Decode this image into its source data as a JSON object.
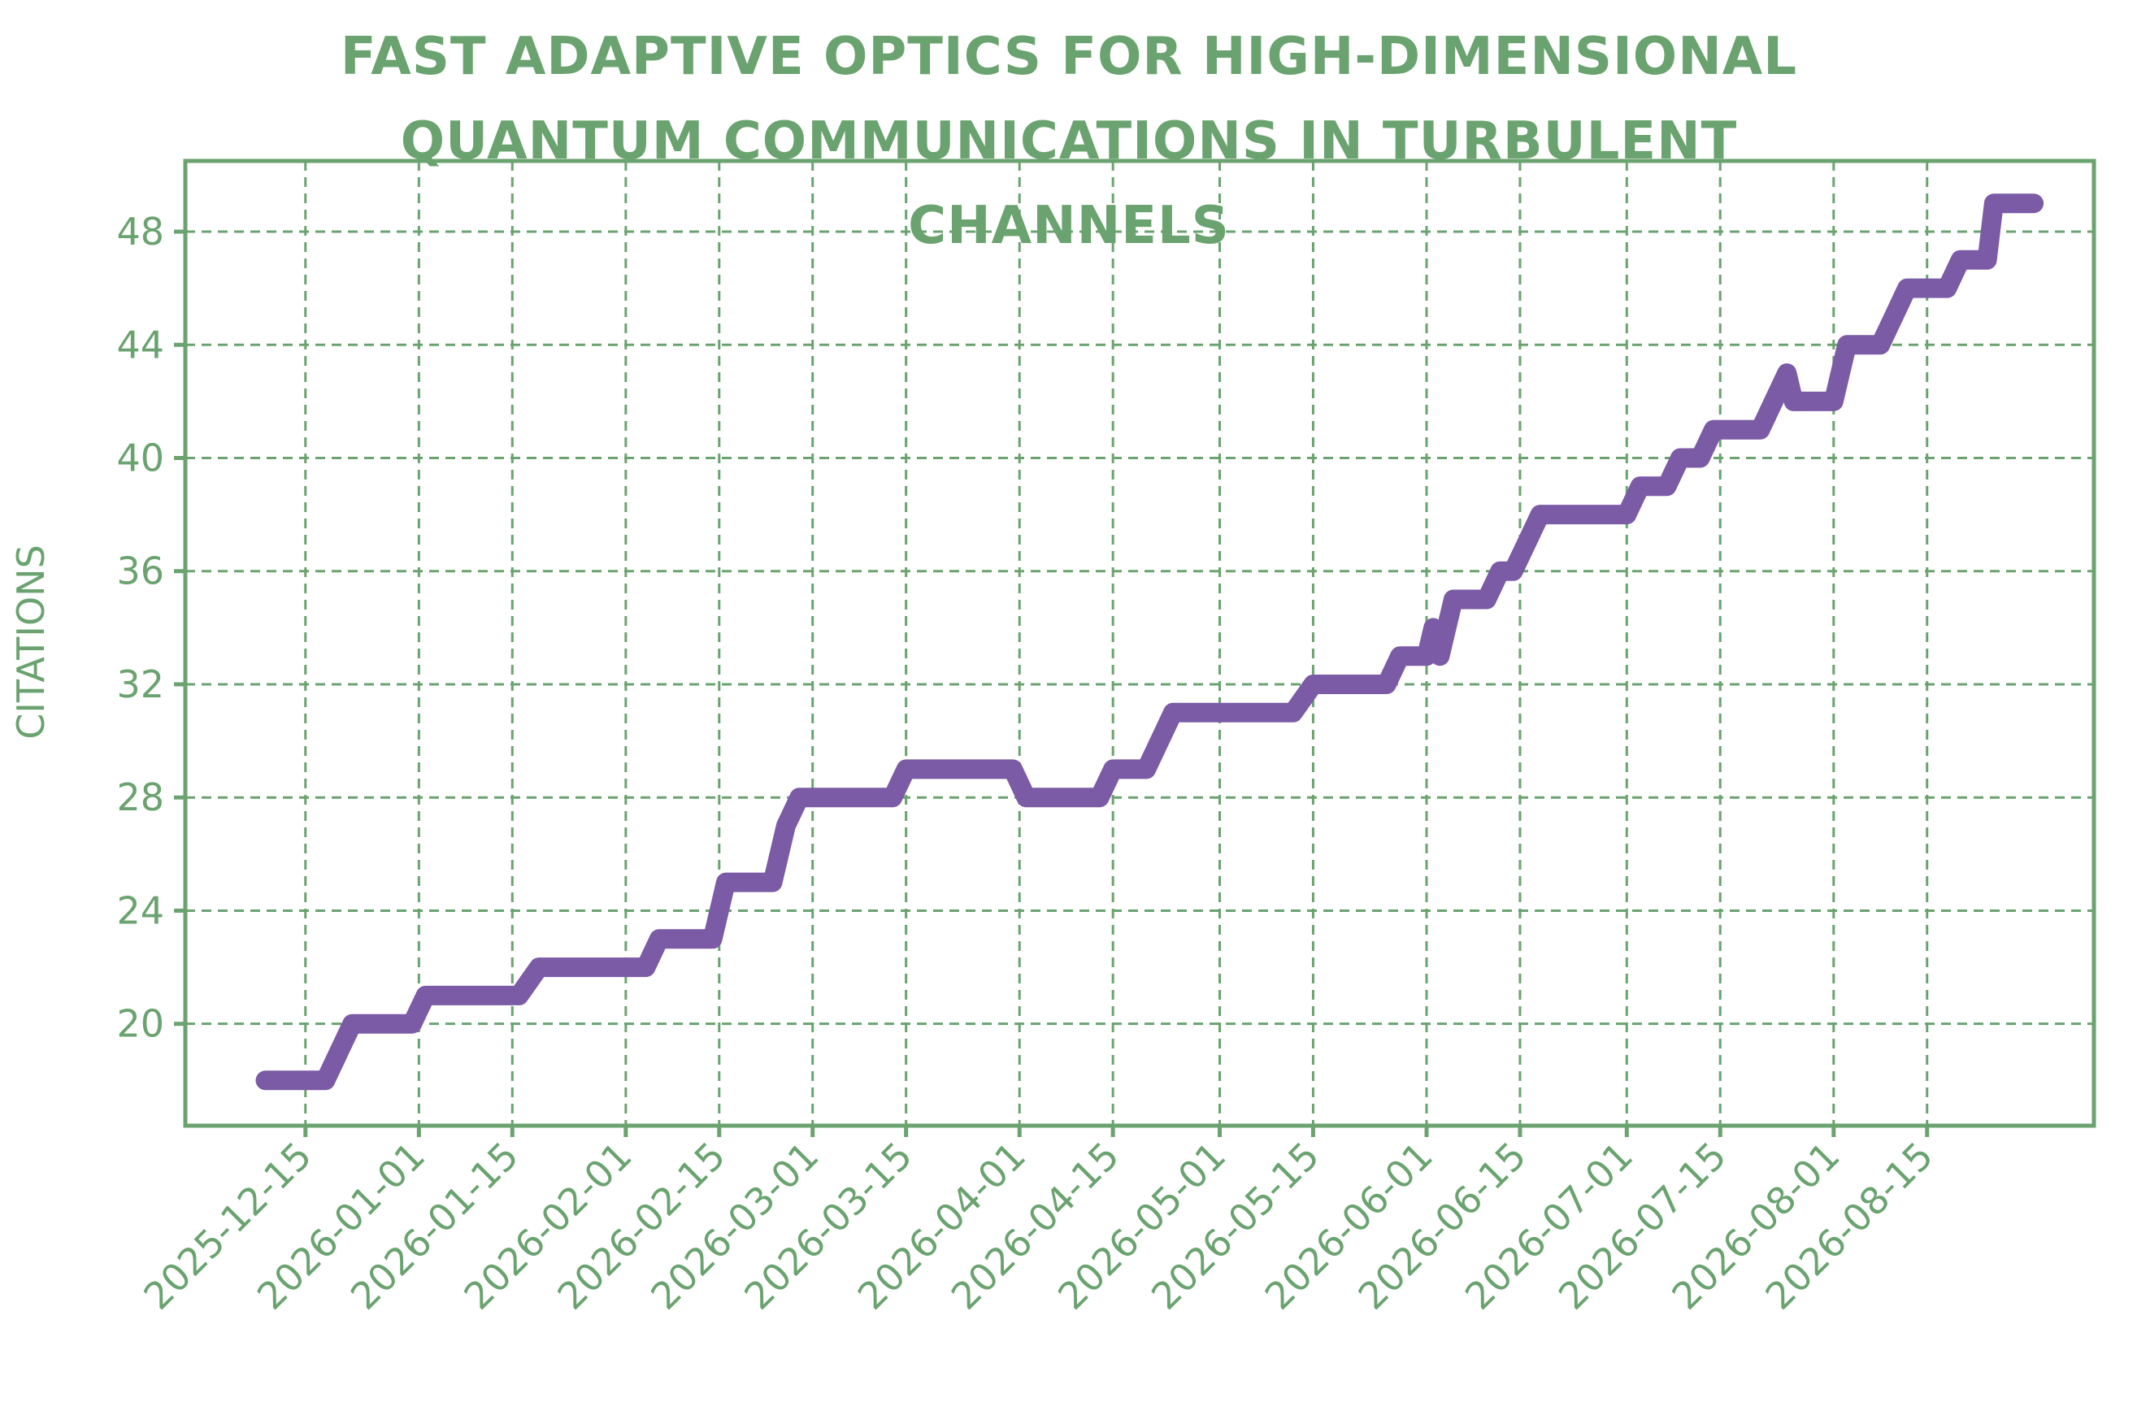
{
  "chart_data": {
    "type": "line",
    "title": "FAST ADAPTIVE OPTICS FOR HIGH-DIMENSIONAL QUANTUM COMMUNICATIONS IN TURBULENT CHANNELS",
    "ylabel": "CITATIONS",
    "x": [
      "2025-12-09",
      "2025-12-18",
      "2025-12-20",
      "2025-12-22",
      "2025-12-31",
      "2026-01-02",
      "2026-01-16",
      "2026-01-19",
      "2026-02-04",
      "2026-02-06",
      "2026-02-14",
      "2026-02-16",
      "2026-02-23",
      "2026-02-25",
      "2026-02-27",
      "2026-03-13",
      "2026-03-15",
      "2026-03-31",
      "2026-04-02",
      "2026-04-13",
      "2026-04-15",
      "2026-04-20",
      "2026-04-22",
      "2026-04-24",
      "2026-05-12",
      "2026-05-15",
      "2026-05-26",
      "2026-05-28",
      "2026-06-01",
      "2026-06-02",
      "2026-06-03",
      "2026-06-05",
      "2026-06-10",
      "2026-06-12",
      "2026-06-14",
      "2026-06-16",
      "2026-06-18",
      "2026-07-01",
      "2026-07-03",
      "2026-07-07",
      "2026-07-09",
      "2026-07-12",
      "2026-07-14",
      "2026-07-21",
      "2026-07-23",
      "2026-07-25",
      "2026-07-26",
      "2026-08-01",
      "2026-08-03",
      "2026-08-08",
      "2026-08-10",
      "2026-08-12",
      "2026-08-18",
      "2026-08-20",
      "2026-08-24",
      "2026-08-25",
      "2026-08-31"
    ],
    "series": [
      {
        "name": "Citations",
        "color": "#7b5aa6",
        "values": [
          18,
          18,
          19,
          20,
          20,
          21,
          21,
          22,
          22,
          23,
          23,
          25,
          25,
          27,
          28,
          28,
          29,
          29,
          28,
          28,
          29,
          29,
          30,
          31,
          31,
          32,
          32,
          33,
          33,
          34,
          33,
          35,
          35,
          36,
          36,
          37,
          38,
          38,
          39,
          39,
          40,
          40,
          41,
          41,
          42,
          43,
          42,
          42,
          44,
          44,
          45,
          46,
          46,
          47,
          47,
          49,
          49
        ]
      }
    ],
    "xlim": [
      "2025-11-27",
      "2026-09-09"
    ],
    "xticks": [
      "2025-12-15",
      "2026-01-01",
      "2026-01-15",
      "2026-02-01",
      "2026-02-15",
      "2026-03-01",
      "2026-03-15",
      "2026-04-01",
      "2026-04-15",
      "2026-05-01",
      "2026-05-15",
      "2026-06-01",
      "2026-06-15",
      "2026-07-01",
      "2026-07-15",
      "2026-08-01",
      "2026-08-15"
    ],
    "ylim": [
      16.4,
      50.5
    ],
    "yticks": [
      20,
      24,
      28,
      32,
      36,
      40,
      44,
      48
    ],
    "grid": true,
    "axis_color": "#6aa36f"
  }
}
